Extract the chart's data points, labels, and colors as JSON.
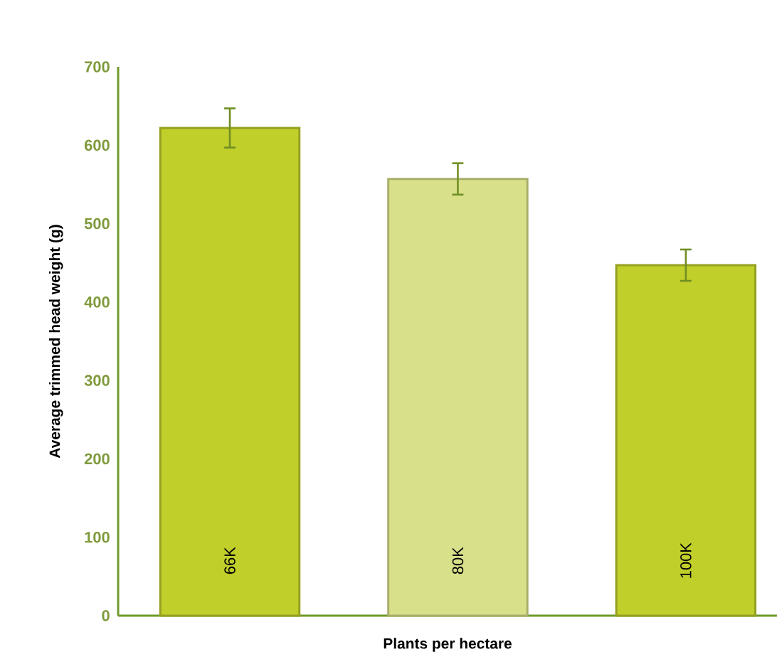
{
  "chart_data": {
    "type": "bar",
    "xlabel": "Plants per hectare",
    "ylabel": "Average trimmed head weight (g)",
    "categories": [
      "66K",
      "80K",
      "100K"
    ],
    "values": [
      622,
      557,
      447
    ],
    "errors": [
      25,
      20,
      20
    ],
    "colors": [
      "#c0cf2a",
      "#d9e08a",
      "#c0cf2a"
    ],
    "ylim": [
      0,
      700
    ],
    "yticks": [
      0,
      100,
      200,
      300,
      400,
      500,
      600,
      700
    ],
    "grid": false
  }
}
